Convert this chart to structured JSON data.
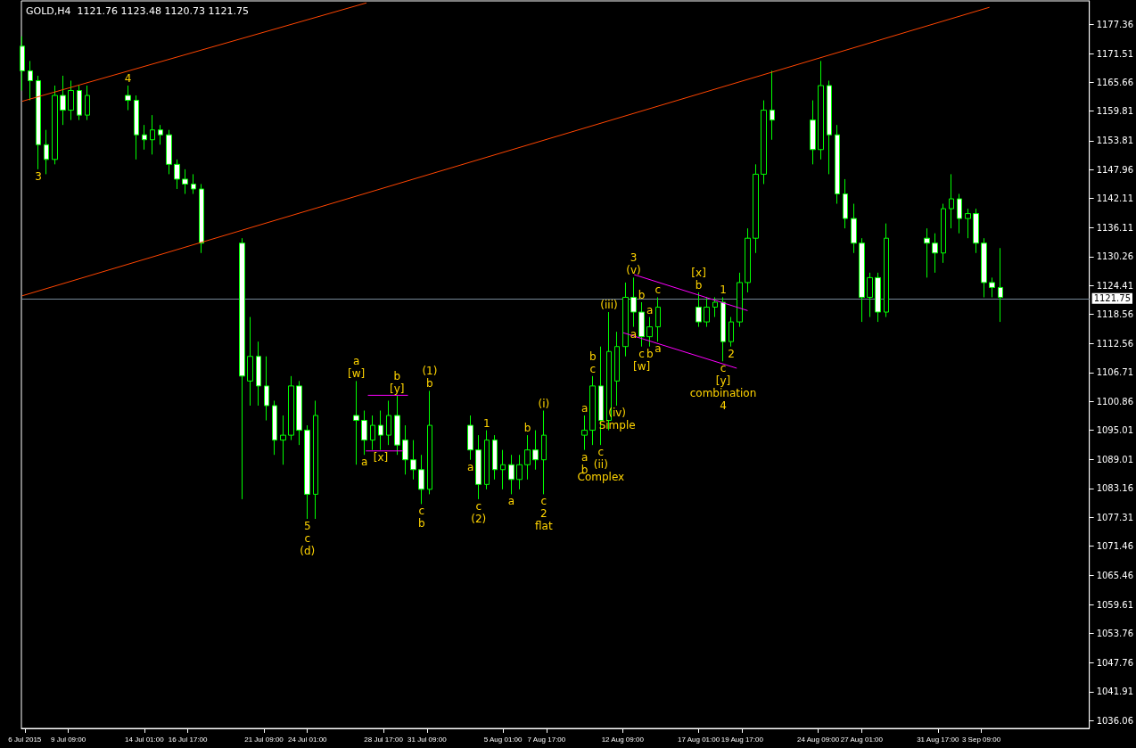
{
  "chart_data": {
    "type": "candlestick",
    "title": "GOLD,H4  1121.76 1123.48 1120.73 1121.75",
    "color": "#00ff00",
    "marker": "none",
    "x": [
      "2015-07-06T13:00",
      "2015-07-07T01:00",
      "2015-07-07T13:00",
      "2015-07-08T01:00",
      "2015-07-08T13:00",
      "2015-07-09T01:00",
      "2015-07-09T13:00",
      "2015-07-10T01:00",
      "2015-07-10T13:00",
      "2015-07-13T01:00",
      "2015-07-13T13:00",
      "2015-07-14T01:00",
      "2015-07-14T13:00",
      "2015-07-15T01:00",
      "2015-07-15T13:00",
      "2015-07-16T01:00",
      "2015-07-16T13:00",
      "2015-07-17T01:00",
      "2015-07-17T13:00",
      "2015-07-20T01:00",
      "2015-07-20T13:00",
      "2015-07-21T01:00",
      "2015-07-21T13:00",
      "2015-07-22T01:00",
      "2015-07-22T13:00",
      "2015-07-23T01:00",
      "2015-07-23T13:00",
      "2015-07-24T01:00",
      "2015-07-24T13:00",
      "2015-07-27T01:00",
      "2015-07-27T13:00",
      "2015-07-28T01:00",
      "2015-07-28T13:00",
      "2015-07-29T01:00",
      "2015-07-29T13:00",
      "2015-07-30T01:00",
      "2015-07-30T13:00",
      "2015-07-31T01:00",
      "2015-07-31T13:00",
      "2015-08-03T01:00",
      "2015-08-03T13:00",
      "2015-08-04T01:00",
      "2015-08-04T13:00",
      "2015-08-05T01:00",
      "2015-08-05T13:00",
      "2015-08-06T01:00",
      "2015-08-06T13:00",
      "2015-08-07T01:00",
      "2015-08-07T13:00",
      "2015-08-10T01:00",
      "2015-08-10T13:00",
      "2015-08-11T01:00",
      "2015-08-11T13:00",
      "2015-08-12T01:00",
      "2015-08-12T13:00",
      "2015-08-13T01:00",
      "2015-08-13T13:00",
      "2015-08-14T01:00",
      "2015-08-14T13:00",
      "2015-08-17T01:00",
      "2015-08-17T13:00",
      "2015-08-18T01:00",
      "2015-08-18T13:00",
      "2015-08-19T01:00",
      "2015-08-19T13:00",
      "2015-08-20T01:00",
      "2015-08-20T13:00",
      "2015-08-21T01:00",
      "2015-08-21T13:00",
      "2015-08-24T01:00",
      "2015-08-24T13:00",
      "2015-08-25T01:00",
      "2015-08-25T13:00",
      "2015-08-26T01:00",
      "2015-08-26T13:00",
      "2015-08-27T01:00",
      "2015-08-27T13:00",
      "2015-08-28T01:00",
      "2015-08-28T13:00",
      "2015-08-31T01:00",
      "2015-08-31T13:00",
      "2015-09-01T01:00",
      "2015-09-01T13:00",
      "2015-09-02T01:00",
      "2015-09-02T13:00",
      "2015-09-03T01:00",
      "2015-09-03T13:00",
      "2015-09-04T01:00",
      "2015-09-04T13:00"
    ],
    "ohlc": [
      [
        1173,
        1175,
        1164,
        1168
      ],
      [
        1168,
        1170,
        1162,
        1166
      ],
      [
        1166,
        1167,
        1148,
        1153
      ],
      [
        1153,
        1156,
        1147,
        1150
      ],
      [
        1150,
        1165,
        1149,
        1163
      ],
      [
        1163,
        1167,
        1157,
        1160
      ],
      [
        1160,
        1166,
        1158,
        1164
      ],
      [
        1164,
        1165,
        1158,
        1159
      ],
      [
        1159,
        1165,
        1158,
        1163
      ],
      [
        1163,
        1165,
        1160,
        1162
      ],
      [
        1162,
        1163,
        1150,
        1155
      ],
      [
        1155,
        1157,
        1152,
        1154
      ],
      [
        1154,
        1159,
        1151,
        1156
      ],
      [
        1156,
        1157,
        1153,
        1155
      ],
      [
        1155,
        1156,
        1147,
        1149
      ],
      [
        1149,
        1150,
        1144,
        1146
      ],
      [
        1146,
        1148,
        1143,
        1145
      ],
      [
        1145,
        1147,
        1143,
        1144
      ],
      [
        1144,
        1145,
        1131,
        1133
      ],
      [
        1133,
        1134,
        1081,
        1106
      ],
      [
        1105,
        1118,
        1100,
        1110
      ],
      [
        1110,
        1113,
        1100,
        1104
      ],
      [
        1104,
        1110,
        1097,
        1100
      ],
      [
        1100,
        1101,
        1090,
        1093
      ],
      [
        1093,
        1098,
        1088,
        1094
      ],
      [
        1094,
        1106,
        1093,
        1104
      ],
      [
        1104,
        1105,
        1092,
        1095
      ],
      [
        1095,
        1096,
        1077,
        1082
      ],
      [
        1082,
        1101,
        1077,
        1098
      ],
      [
        1098,
        1105,
        1088,
        1097
      ],
      [
        1097,
        1099,
        1090,
        1093
      ],
      [
        1093,
        1098,
        1091,
        1096
      ],
      [
        1096,
        1099,
        1091,
        1094
      ],
      [
        1094,
        1101,
        1092,
        1098
      ],
      [
        1098,
        1102,
        1090,
        1092
      ],
      [
        1093,
        1096,
        1086,
        1089
      ],
      [
        1089,
        1093,
        1085,
        1087
      ],
      [
        1087,
        1090,
        1080,
        1083
      ],
      [
        1083,
        1103,
        1082,
        1096
      ],
      [
        1096,
        1098,
        1089,
        1091
      ],
      [
        1091,
        1094,
        1081,
        1084
      ],
      [
        1084,
        1095,
        1083,
        1093
      ],
      [
        1093,
        1094,
        1085,
        1087
      ],
      [
        1087,
        1091,
        1083,
        1088
      ],
      [
        1088,
        1090,
        1082,
        1085
      ],
      [
        1085,
        1090,
        1083,
        1088
      ],
      [
        1088,
        1094,
        1085,
        1091
      ],
      [
        1091,
        1095,
        1087,
        1089
      ],
      [
        1089,
        1099,
        1082,
        1094
      ],
      [
        1094,
        1098,
        1091,
        1095
      ],
      [
        1095,
        1106,
        1092,
        1104
      ],
      [
        1104,
        1112,
        1092,
        1097
      ],
      [
        1097,
        1119,
        1095,
        1111
      ],
      [
        1105,
        1115,
        1100,
        1112
      ],
      [
        1112,
        1125,
        1110,
        1122
      ],
      [
        1122,
        1126,
        1116,
        1119
      ],
      [
        1119,
        1121,
        1112,
        1114
      ],
      [
        1114,
        1118,
        1112,
        1116
      ],
      [
        1116,
        1122,
        1113,
        1120
      ],
      [
        1120,
        1123,
        1116,
        1117
      ],
      [
        1117,
        1122,
        1116,
        1120
      ],
      [
        1120,
        1122,
        1118,
        1121
      ],
      [
        1121,
        1122,
        1109,
        1113
      ],
      [
        1113,
        1118,
        1112,
        1117
      ],
      [
        1117,
        1127,
        1116,
        1125
      ],
      [
        1125,
        1136,
        1123,
        1134
      ],
      [
        1134,
        1149,
        1131,
        1147
      ],
      [
        1147,
        1162,
        1145,
        1160
      ],
      [
        1160,
        1168,
        1154,
        1158
      ],
      [
        1158,
        1162,
        1149,
        1152
      ],
      [
        1152,
        1170,
        1150,
        1165
      ],
      [
        1165,
        1166,
        1147,
        1155
      ],
      [
        1155,
        1157,
        1141,
        1143
      ],
      [
        1143,
        1146,
        1136,
        1138
      ],
      [
        1138,
        1141,
        1131,
        1133
      ],
      [
        1133,
        1134,
        1117,
        1122
      ],
      [
        1122,
        1127,
        1118,
        1126
      ],
      [
        1126,
        1127,
        1117,
        1119
      ],
      [
        1119,
        1137,
        1118,
        1134
      ],
      [
        1134,
        1136,
        1126,
        1133
      ],
      [
        1133,
        1135,
        1127,
        1131
      ],
      [
        1131,
        1141,
        1129,
        1140
      ],
      [
        1140,
        1147,
        1136,
        1142
      ],
      [
        1142,
        1143,
        1135,
        1138
      ],
      [
        1138,
        1140,
        1134,
        1139
      ],
      [
        1139,
        1140,
        1131,
        1133
      ],
      [
        1133,
        1134,
        1122,
        1125
      ],
      [
        1125,
        1126,
        1122,
        1124
      ],
      [
        1124,
        1132,
        1117,
        1122
      ]
    ],
    "series": [
      {
        "type": "line",
        "color": "#ff4500",
        "x": [
          "2015-07-06T13:00",
          "2015-07-27T16:00"
        ],
        "values": [
          1161.8,
          1181.8
        ]
      },
      {
        "type": "line",
        "color": "#ff4500",
        "x": [
          "2015-07-06T13:00",
          "2015-09-03T21:00"
        ],
        "values": [
          1122.3,
          1180.9
        ]
      },
      {
        "type": "line",
        "color": "#ff00ff",
        "x": [
          "2015-08-13T02:00",
          "2015-08-20T01:00"
        ],
        "values": [
          1126.6,
          1119.3
        ]
      },
      {
        "type": "line",
        "color": "#ff00ff",
        "x": [
          "2015-08-12T10:00",
          "2015-08-19T09:00"
        ],
        "values": [
          1114.8,
          1107.6
        ]
      },
      {
        "type": "line",
        "color": "#ff00ff",
        "x": [
          "2015-07-27T18:00",
          "2015-07-30T05:00"
        ],
        "values": [
          1102.1,
          1102.1
        ]
      },
      {
        "type": "line",
        "color": "#ff00ff",
        "x": [
          "2015-07-27T15:00",
          "2015-07-29T22:00"
        ],
        "values": [
          1090.8,
          1090.8
        ]
      }
    ],
    "ref_lines": [
      {
        "axis": "y",
        "value": 1121.75,
        "label": "1121.75",
        "color": "#778899"
      }
    ],
    "xlim": [
      "2015-07-06T12:00",
      "2015-09-10T00:00"
    ],
    "xticks": [
      {
        "value": "2015-07-06T17:00",
        "label": "6 Jul 2015"
      },
      {
        "value": "2015-07-09T09:00",
        "label": "9 Jul 09:00"
      },
      {
        "value": "2015-07-14T01:00",
        "label": "14 Jul 01:00"
      },
      {
        "value": "2015-07-16T17:00",
        "label": "16 Jul 17:00"
      },
      {
        "value": "2015-07-21T09:00",
        "label": "21 Jul 09:00"
      },
      {
        "value": "2015-07-24T01:00",
        "label": "24 Jul 01:00"
      },
      {
        "value": "2015-07-28T17:00",
        "label": "28 Jul 17:00"
      },
      {
        "value": "2015-07-31T09:00",
        "label": "31 Jul 09:00"
      },
      {
        "value": "2015-08-05T01:00",
        "label": "5 Aug 01:00"
      },
      {
        "value": "2015-08-07T17:00",
        "label": "7 Aug 17:00"
      },
      {
        "value": "2015-08-12T09:00",
        "label": "12 Aug 09:00"
      },
      {
        "value": "2015-08-17T01:00",
        "label": "17 Aug 01:00"
      },
      {
        "value": "2015-08-19T17:00",
        "label": "19 Aug 17:00"
      },
      {
        "value": "2015-08-24T09:00",
        "label": "24 Aug 09:00"
      },
      {
        "value": "2015-08-27T01:00",
        "label": "27 Aug 01:00"
      },
      {
        "value": "2015-08-31T17:00",
        "label": "31 Aug 17:00"
      },
      {
        "value": "2015-09-03T09:00",
        "label": "3 Sep 09:00"
      }
    ],
    "ylim": [
      1034.45,
      1182.2
    ],
    "yticks": [
      1036.06,
      1041.91,
      1047.76,
      1053.76,
      1059.61,
      1065.46,
      1071.46,
      1077.31,
      1083.16,
      1089.01,
      1095.01,
      1100.86,
      1106.71,
      1112.56,
      1118.56,
      1124.41,
      1130.26,
      1136.11,
      1142.11,
      1147.96,
      1153.81,
      1159.81,
      1165.66,
      1171.51,
      1177.36
    ],
    "annotations": [
      {
        "text": "4",
        "x": "2015-07-13T01:00",
        "y": 1165
      },
      {
        "text": "3",
        "x": "2015-07-07T13:00",
        "y": 1148
      },
      {
        "text": "[w]",
        "x": "2015-07-27T01:00",
        "y": 1105
      },
      "a",
      {
        "text": "[y]",
        "x": "2015-07-29T13:00",
        "y": 1102
      },
      "b",
      {
        "text": "[x]",
        "x": "2015-07-28T13:00",
        "y": 1091
      },
      {
        "text": "a",
        "x": "2015-07-27T13:00",
        "y": 1090
      },
      {
        "text": "5",
        "x": "2015-07-24T01:00",
        "y": 1077
      },
      "c",
      "(d)",
      {
        "text": "b",
        "x": "2015-07-31T13:00",
        "y": 1103
      },
      "(1)",
      {
        "text": "a",
        "x": "2015-08-03T01:00",
        "y": 1089
      },
      {
        "text": "c",
        "x": "2015-07-31T01:00",
        "y": 1080
      },
      "b",
      {
        "text": "1",
        "x": "2015-08-04T01:00",
        "y": 1095
      },
      {
        "text": "c",
        "x": "2015-08-03T13:00",
        "y": 1081
      },
      "(2)",
      {
        "text": "a",
        "x": "2015-08-05T13:00",
        "y": 1082
      },
      {
        "text": "b",
        "x": "2015-08-06T13:00",
        "y": 1094
      },
      {
        "text": "c",
        "x": "2015-08-07T13:00",
        "y": 1082
      },
      "2",
      "flat",
      {
        "text": "(i)",
        "x": "2015-08-07T13:00",
        "y": 1099
      },
      {
        "text": "a",
        "x": "2015-08-10T01:00",
        "y": 1098
      },
      {
        "text": "a",
        "x": "2015-08-10T01:00",
        "y": 1091
      },
      "b",
      {
        "text": "c",
        "x": "2015-08-11T01:00",
        "y": 1092
      },
      "(ii)",
      "Complex",
      {
        "text": "c",
        "x": "2015-08-10T13:00",
        "y": 1106
      },
      "b",
      {
        "text": "(iv)",
        "x": "2015-08-12T01:00",
        "y": 1100
      },
      "Simple",
      {
        "text": "(iii)",
        "x": "2015-08-11T13:00",
        "y": 1119
      },
      {
        "text": "(v)",
        "x": "2015-08-13T01:00",
        "y": 1126
      },
      "3",
      {
        "text": "b",
        "x": "2015-08-13T13:00",
        "y": 1121
      },
      {
        "text": "a",
        "x": "2015-08-13T01:00",
        "y": 1116
      },
      {
        "text": "a",
        "x": "2015-08-14T01:00",
        "y": 1118
      },
      {
        "text": "c",
        "x": "2015-08-13T13:00",
        "y": 1112
      },
      "[w]",
      {
        "text": "b",
        "x": "2015-08-14T01:00",
        "y": 1112
      },
      {
        "text": "a",
        "x": "2015-08-14T13:00",
        "y": 1113
      },
      {
        "text": "c",
        "x": "2015-08-14T13:00",
        "y": 1122
      },
      {
        "text": "b",
        "x": "2015-08-17T01:00",
        "y": 1123
      },
      "[x]",
      {
        "text": "1",
        "x": "2015-08-18T13:00",
        "y": 1122
      },
      {
        "text": "2",
        "x": "2015-08-19T01:00",
        "y": 1112
      },
      {
        "text": "c",
        "x": "2015-08-18T13:00",
        "y": 1109
      },
      "[y]",
      "combination",
      "4"
    ]
  }
}
